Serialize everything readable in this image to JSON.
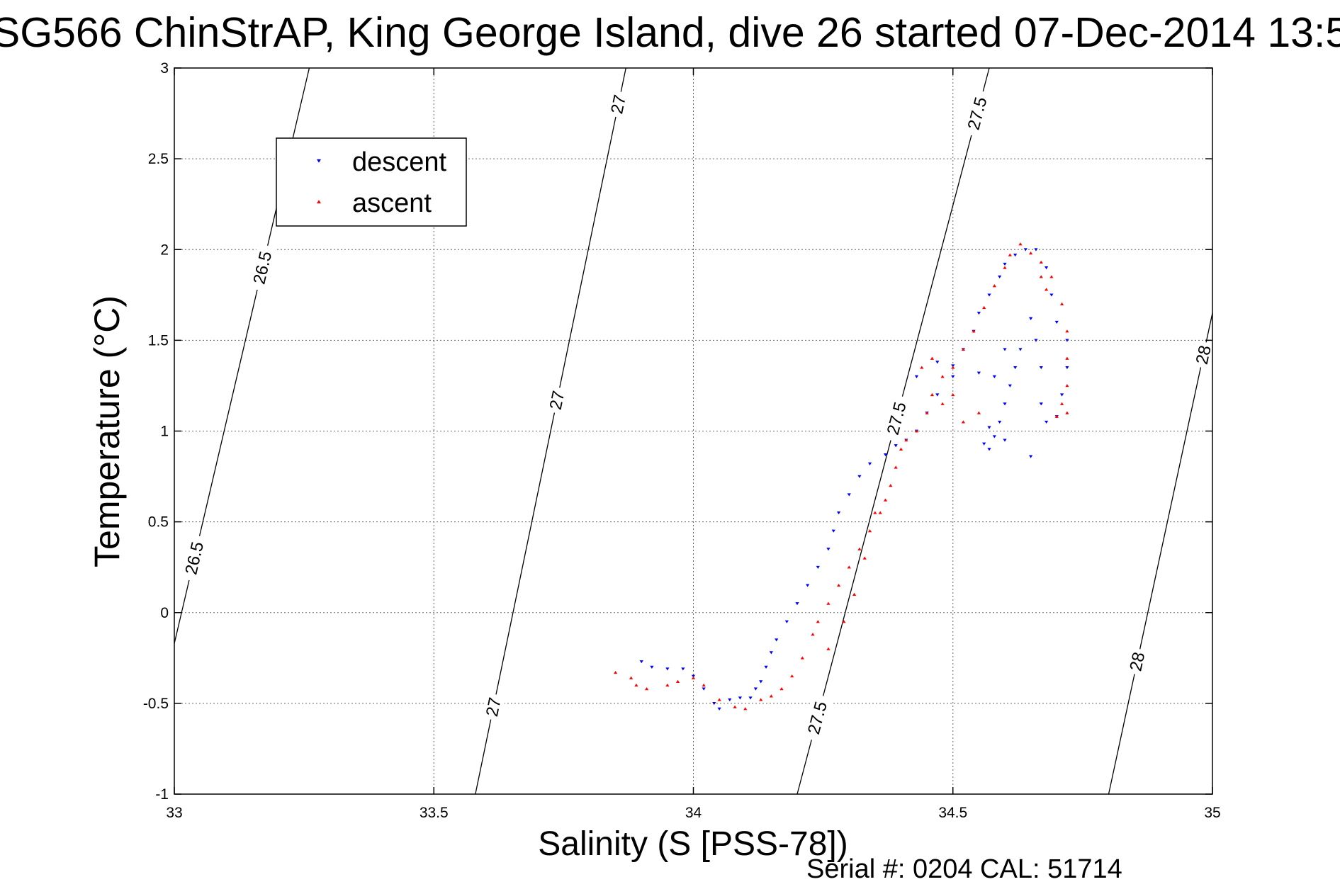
{
  "title": "SG566 ChinStrAP, King George Island, dive 26 started 07-Dec-2014 13:5",
  "footer": "Serial #: 0204  CAL: 51714",
  "colors": {
    "descent": "#0000ff",
    "ascent": "#ff0000",
    "axis": "#000000",
    "grid": "#666666"
  },
  "chart_data": {
    "type": "scatter",
    "xlabel": "Salinity (S [PSS-78])",
    "ylabel": "Temperature (°C)",
    "xlim": [
      33,
      35
    ],
    "ylim": [
      -1,
      3
    ],
    "xticks": [
      "33",
      "33.5",
      "34",
      "34.5",
      "35"
    ],
    "yticks": [
      "-1",
      "-0.5",
      "0",
      "0.5",
      "1",
      "1.5",
      "2",
      "2.5",
      "3"
    ],
    "grid": true,
    "legend_position": "top-left",
    "series": [
      {
        "name": "descent",
        "marker": "triangle-down",
        "color": "#0000ff",
        "points": [
          [
            33.9,
            -0.27
          ],
          [
            33.92,
            -0.3
          ],
          [
            33.95,
            -0.31
          ],
          [
            33.98,
            -0.31
          ],
          [
            34.0,
            -0.35
          ],
          [
            34.02,
            -0.42
          ],
          [
            34.04,
            -0.5
          ],
          [
            34.05,
            -0.53
          ],
          [
            34.07,
            -0.48
          ],
          [
            34.09,
            -0.47
          ],
          [
            34.11,
            -0.47
          ],
          [
            34.12,
            -0.42
          ],
          [
            34.13,
            -0.38
          ],
          [
            34.14,
            -0.3
          ],
          [
            34.15,
            -0.22
          ],
          [
            34.16,
            -0.15
          ],
          [
            34.18,
            -0.05
          ],
          [
            34.2,
            0.05
          ],
          [
            34.22,
            0.15
          ],
          [
            34.24,
            0.25
          ],
          [
            34.26,
            0.35
          ],
          [
            34.27,
            0.45
          ],
          [
            34.28,
            0.55
          ],
          [
            34.3,
            0.65
          ],
          [
            34.32,
            0.75
          ],
          [
            34.34,
            0.82
          ],
          [
            34.37,
            0.87
          ],
          [
            34.39,
            0.92
          ],
          [
            34.41,
            0.95
          ],
          [
            34.43,
            1.0
          ],
          [
            34.45,
            1.1
          ],
          [
            34.47,
            1.2
          ],
          [
            34.5,
            1.3
          ],
          [
            34.52,
            1.45
          ],
          [
            34.54,
            1.55
          ],
          [
            34.55,
            1.65
          ],
          [
            34.57,
            1.75
          ],
          [
            34.59,
            1.85
          ],
          [
            34.6,
            1.92
          ],
          [
            34.62,
            1.97
          ],
          [
            34.64,
            2.0
          ],
          [
            34.66,
            2.0
          ],
          [
            34.68,
            1.9
          ],
          [
            34.69,
            1.75
          ],
          [
            34.7,
            1.6
          ],
          [
            34.72,
            1.5
          ],
          [
            34.72,
            1.35
          ],
          [
            34.71,
            1.2
          ],
          [
            34.7,
            1.08
          ],
          [
            34.68,
            1.05
          ],
          [
            34.67,
            1.15
          ],
          [
            34.67,
            1.35
          ],
          [
            34.66,
            1.5
          ],
          [
            34.65,
            1.62
          ],
          [
            34.63,
            1.45
          ],
          [
            34.62,
            1.35
          ],
          [
            34.61,
            1.25
          ],
          [
            34.6,
            1.15
          ],
          [
            34.59,
            1.05
          ],
          [
            34.58,
            0.97
          ],
          [
            34.57,
            0.9
          ],
          [
            34.56,
            0.93
          ],
          [
            34.57,
            1.02
          ],
          [
            34.6,
            0.95
          ],
          [
            34.65,
            0.86
          ],
          [
            34.55,
            1.32
          ],
          [
            34.5,
            1.36
          ],
          [
            34.47,
            1.38
          ],
          [
            34.43,
            1.3
          ],
          [
            34.58,
            1.3
          ],
          [
            34.6,
            1.45
          ]
        ]
      },
      {
        "name": "ascent",
        "marker": "triangle-up",
        "color": "#ff0000",
        "points": [
          [
            33.85,
            -0.33
          ],
          [
            33.88,
            -0.36
          ],
          [
            33.89,
            -0.4
          ],
          [
            33.91,
            -0.42
          ],
          [
            33.95,
            -0.4
          ],
          [
            33.97,
            -0.38
          ],
          [
            34.0,
            -0.36
          ],
          [
            34.02,
            -0.4
          ],
          [
            34.05,
            -0.48
          ],
          [
            34.08,
            -0.52
          ],
          [
            34.1,
            -0.53
          ],
          [
            34.13,
            -0.48
          ],
          [
            34.15,
            -0.46
          ],
          [
            34.17,
            -0.42
          ],
          [
            34.19,
            -0.35
          ],
          [
            34.21,
            -0.25
          ],
          [
            34.23,
            -0.12
          ],
          [
            34.24,
            -0.05
          ],
          [
            34.26,
            0.05
          ],
          [
            34.28,
            0.15
          ],
          [
            34.3,
            0.25
          ],
          [
            34.32,
            0.35
          ],
          [
            34.34,
            0.45
          ],
          [
            34.35,
            0.55
          ],
          [
            34.37,
            0.62
          ],
          [
            34.38,
            0.7
          ],
          [
            34.39,
            0.8
          ],
          [
            34.4,
            0.9
          ],
          [
            34.41,
            0.95
          ],
          [
            34.43,
            1.0
          ],
          [
            34.45,
            1.1
          ],
          [
            34.46,
            1.2
          ],
          [
            34.48,
            1.3
          ],
          [
            34.5,
            1.35
          ],
          [
            34.52,
            1.45
          ],
          [
            34.54,
            1.55
          ],
          [
            34.56,
            1.68
          ],
          [
            34.58,
            1.8
          ],
          [
            34.6,
            1.9
          ],
          [
            34.61,
            1.97
          ],
          [
            34.63,
            2.03
          ],
          [
            34.65,
            1.98
          ],
          [
            34.67,
            1.93
          ],
          [
            34.69,
            1.85
          ],
          [
            34.71,
            1.7
          ],
          [
            34.72,
            1.55
          ],
          [
            34.72,
            1.4
          ],
          [
            34.72,
            1.25
          ],
          [
            34.71,
            1.15
          ],
          [
            34.7,
            1.08
          ],
          [
            34.72,
            1.1
          ],
          [
            34.67,
            1.85
          ],
          [
            34.68,
            1.78
          ],
          [
            34.55,
            1.1
          ],
          [
            34.52,
            1.05
          ],
          [
            34.5,
            1.2
          ],
          [
            34.48,
            1.15
          ],
          [
            34.46,
            1.4
          ],
          [
            34.44,
            1.35
          ],
          [
            34.36,
            0.55
          ],
          [
            34.33,
            0.3
          ],
          [
            34.31,
            0.1
          ],
          [
            34.29,
            -0.05
          ],
          [
            34.26,
            -0.2
          ]
        ]
      }
    ],
    "contours": [
      {
        "sigma": 26.5,
        "label": "26.5",
        "s0": 33.0,
        "t0": -0.17,
        "s1": 33.26,
        "t1": 3.0,
        "label_t": [
          1.9,
          0.3
        ]
      },
      {
        "sigma": 27.0,
        "label": "27",
        "s0": 33.58,
        "t0": -1.0,
        "s1": 33.87,
        "t1": 3.0,
        "label_t": [
          -0.52,
          1.17,
          2.8
        ]
      },
      {
        "sigma": 27.5,
        "label": "27.5",
        "s0": 34.2,
        "t0": -1.0,
        "s1": 34.57,
        "t1": 3.0,
        "label_t": [
          -0.58,
          1.07,
          2.75
        ]
      },
      {
        "sigma": 28.0,
        "label": "28",
        "s0": 34.8,
        "t0": -1.0,
        "s1": 35.0,
        "t1": 1.65,
        "label_t": [
          -0.27,
          1.42
        ]
      }
    ],
    "legend": [
      {
        "label": "descent",
        "series": "descent"
      },
      {
        "label": "ascent",
        "series": "ascent"
      }
    ]
  }
}
